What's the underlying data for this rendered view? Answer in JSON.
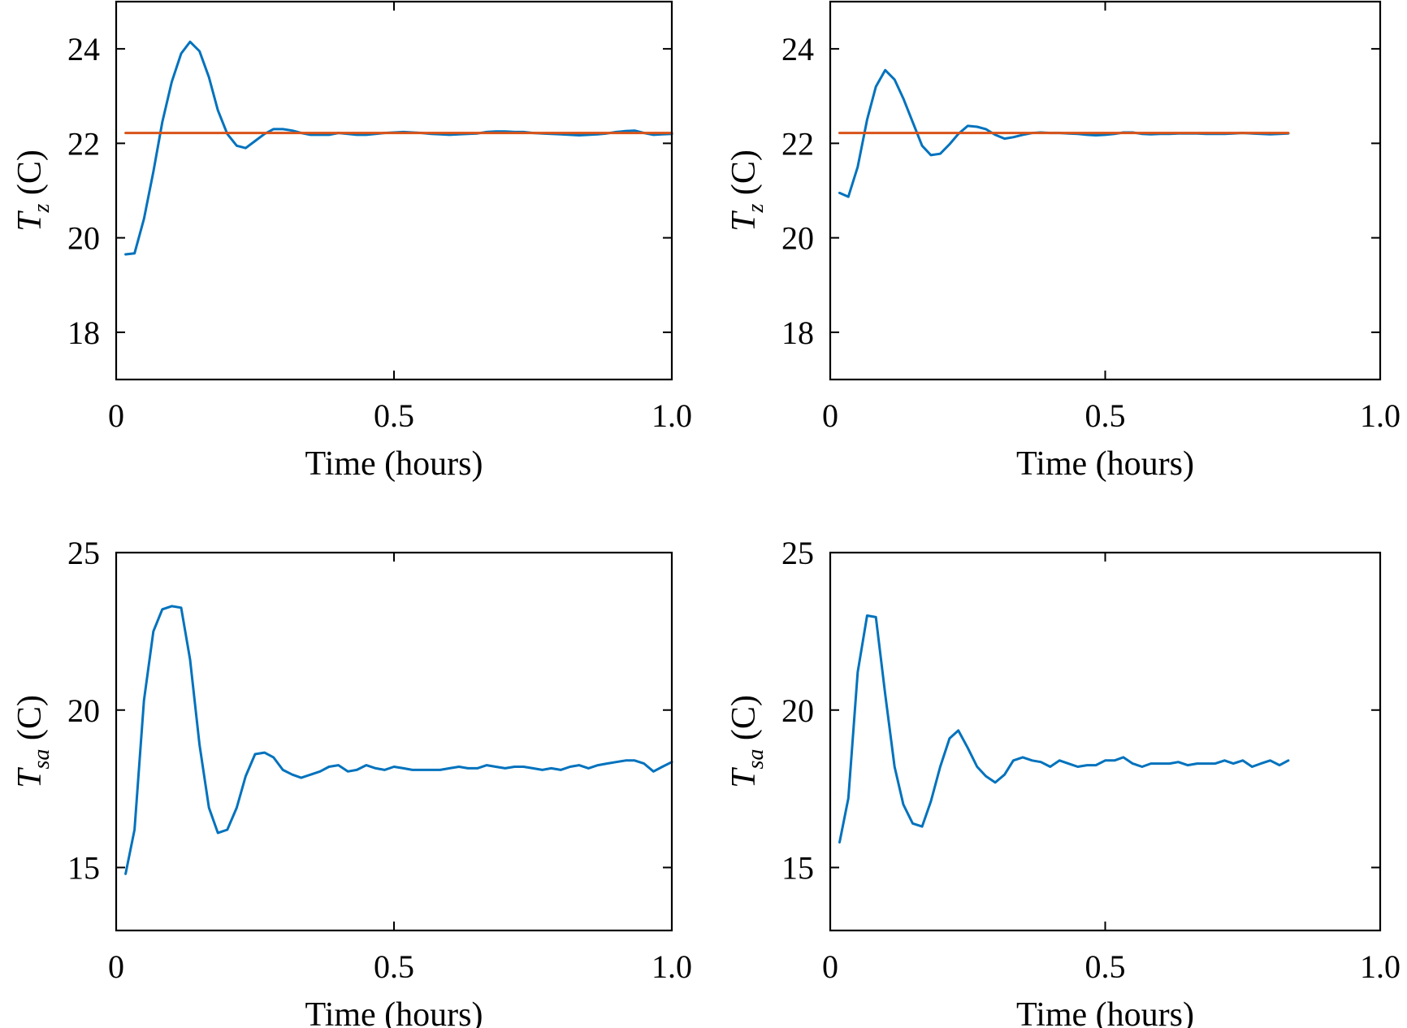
{
  "figure": {
    "chart_data": [
      {
        "type": "line",
        "xlabel": "Time (hours)",
        "ylabel_symbol": "T",
        "ylabel_sub": "z",
        "ylabel_unit": " (C)",
        "xlim": [
          0,
          1.0
        ],
        "ylim": [
          17,
          25
        ],
        "xticks": [
          0,
          0.5,
          1.0
        ],
        "xtick_labels": [
          "0",
          "0.5",
          "1.0"
        ],
        "yticks": [
          18,
          20,
          22,
          24
        ],
        "ytick_labels": [
          "18",
          "20",
          "22",
          "24"
        ],
        "grid": false,
        "series": [
          {
            "color": "#0072BD",
            "x": [
              0.017,
              0.033,
              0.05,
              0.067,
              0.083,
              0.1,
              0.117,
              0.133,
              0.15,
              0.167,
              0.183,
              0.2,
              0.217,
              0.233,
              0.25,
              0.267,
              0.283,
              0.3,
              0.317,
              0.333,
              0.35,
              0.367,
              0.383,
              0.4,
              0.417,
              0.433,
              0.45,
              0.467,
              0.483,
              0.5,
              0.517,
              0.533,
              0.55,
              0.567,
              0.583,
              0.6,
              0.617,
              0.633,
              0.65,
              0.667,
              0.683,
              0.7,
              0.717,
              0.733,
              0.75,
              0.767,
              0.783,
              0.8,
              0.817,
              0.833,
              0.85,
              0.867,
              0.883,
              0.9,
              0.917,
              0.933,
              0.95,
              0.967,
              0.983,
              1.0
            ],
            "y": [
              19.65,
              19.67,
              20.4,
              21.4,
              22.45,
              23.3,
              23.9,
              24.15,
              23.95,
              23.4,
              22.7,
              22.2,
              21.95,
              21.9,
              22.05,
              22.2,
              22.3,
              22.3,
              22.27,
              22.22,
              22.18,
              22.18,
              22.18,
              22.22,
              22.2,
              22.18,
              22.18,
              22.2,
              22.22,
              22.23,
              22.24,
              22.23,
              22.22,
              22.2,
              22.19,
              22.18,
              22.19,
              22.2,
              22.21,
              22.24,
              22.25,
              22.25,
              22.24,
              22.24,
              22.22,
              22.21,
              22.2,
              22.19,
              22.18,
              22.17,
              22.18,
              22.19,
              22.21,
              22.24,
              22.26,
              22.27,
              22.22,
              22.18,
              22.19,
              22.2
            ]
          },
          {
            "color": "#D95319",
            "x": [
              0.017,
              1.0
            ],
            "y": [
              22.22,
              22.22
            ]
          }
        ]
      },
      {
        "type": "line",
        "xlabel": "Time (hours)",
        "ylabel_symbol": "T",
        "ylabel_sub": "z",
        "ylabel_unit": " (C)",
        "xlim": [
          0,
          1.0
        ],
        "ylim": [
          17,
          25
        ],
        "xticks": [
          0,
          0.5,
          1.0
        ],
        "xtick_labels": [
          "0",
          "0.5",
          "1.0"
        ],
        "yticks": [
          18,
          20,
          22,
          24
        ],
        "ytick_labels": [
          "18",
          "20",
          "22",
          "24"
        ],
        "grid": false,
        "series": [
          {
            "color": "#0072BD",
            "x": [
              0.017,
              0.033,
              0.05,
              0.067,
              0.083,
              0.1,
              0.117,
              0.133,
              0.15,
              0.167,
              0.183,
              0.2,
              0.217,
              0.233,
              0.25,
              0.267,
              0.283,
              0.3,
              0.317,
              0.333,
              0.35,
              0.367,
              0.383,
              0.4,
              0.417,
              0.433,
              0.45,
              0.467,
              0.483,
              0.5,
              0.517,
              0.533,
              0.55,
              0.567,
              0.583,
              0.6,
              0.617,
              0.633,
              0.65,
              0.667,
              0.683,
              0.7,
              0.717,
              0.733,
              0.75,
              0.767,
              0.783,
              0.8,
              0.817,
              0.833
            ],
            "y": [
              20.95,
              20.87,
              21.5,
              22.5,
              23.2,
              23.55,
              23.35,
              22.95,
              22.45,
              21.95,
              21.75,
              21.78,
              21.98,
              22.2,
              22.37,
              22.35,
              22.3,
              22.18,
              22.1,
              22.13,
              22.18,
              22.22,
              22.23,
              22.22,
              22.22,
              22.21,
              22.2,
              22.18,
              22.17,
              22.18,
              22.2,
              22.23,
              22.23,
              22.2,
              22.19,
              22.2,
              22.2,
              22.21,
              22.21,
              22.21,
              22.2,
              22.2,
              22.2,
              22.21,
              22.22,
              22.21,
              22.2,
              22.19,
              22.2,
              22.21
            ]
          },
          {
            "color": "#D95319",
            "x": [
              0.017,
              0.833
            ],
            "y": [
              22.22,
              22.22
            ]
          }
        ]
      },
      {
        "type": "line",
        "xlabel": "Time (hours)",
        "ylabel_symbol": "T",
        "ylabel_sub": "sa",
        "ylabel_unit": " (C)",
        "xlim": [
          0,
          1.0
        ],
        "ylim": [
          13,
          25
        ],
        "xticks": [
          0,
          0.5,
          1.0
        ],
        "xtick_labels": [
          "0",
          "0.5",
          "1.0"
        ],
        "yticks": [
          15,
          20,
          25
        ],
        "ytick_labels": [
          "15",
          "20",
          "25"
        ],
        "grid": false,
        "series": [
          {
            "color": "#0072BD",
            "x": [
              0.017,
              0.033,
              0.05,
              0.067,
              0.083,
              0.1,
              0.117,
              0.133,
              0.15,
              0.167,
              0.183,
              0.2,
              0.217,
              0.233,
              0.25,
              0.267,
              0.283,
              0.3,
              0.317,
              0.333,
              0.35,
              0.367,
              0.383,
              0.4,
              0.417,
              0.433,
              0.45,
              0.467,
              0.483,
              0.5,
              0.517,
              0.533,
              0.55,
              0.567,
              0.583,
              0.6,
              0.617,
              0.633,
              0.65,
              0.667,
              0.683,
              0.7,
              0.717,
              0.733,
              0.75,
              0.767,
              0.783,
              0.8,
              0.817,
              0.833,
              0.85,
              0.867,
              0.883,
              0.9,
              0.917,
              0.933,
              0.95,
              0.967,
              0.983,
              1.0
            ],
            "y": [
              14.8,
              16.2,
              20.3,
              22.5,
              23.2,
              23.3,
              23.25,
              21.6,
              18.9,
              16.9,
              16.1,
              16.2,
              16.9,
              17.9,
              18.6,
              18.65,
              18.5,
              18.1,
              17.95,
              17.85,
              17.95,
              18.05,
              18.2,
              18.25,
              18.05,
              18.1,
              18.25,
              18.15,
              18.1,
              18.2,
              18.15,
              18.1,
              18.1,
              18.1,
              18.1,
              18.15,
              18.2,
              18.15,
              18.15,
              18.25,
              18.2,
              18.15,
              18.2,
              18.2,
              18.15,
              18.1,
              18.15,
              18.1,
              18.2,
              18.25,
              18.15,
              18.25,
              18.3,
              18.35,
              18.4,
              18.4,
              18.3,
              18.05,
              18.2,
              18.35
            ]
          }
        ]
      },
      {
        "type": "line",
        "xlabel": "Time (hours)",
        "ylabel_symbol": "T",
        "ylabel_sub": "sa",
        "ylabel_unit": " (C)",
        "xlim": [
          0,
          1.0
        ],
        "ylim": [
          13,
          25
        ],
        "xticks": [
          0,
          0.5,
          1.0
        ],
        "xtick_labels": [
          "0",
          "0.5",
          "1.0"
        ],
        "yticks": [
          15,
          20,
          25
        ],
        "ytick_labels": [
          "15",
          "20",
          "25"
        ],
        "grid": false,
        "series": [
          {
            "color": "#0072BD",
            "x": [
              0.017,
              0.033,
              0.05,
              0.067,
              0.083,
              0.1,
              0.117,
              0.133,
              0.15,
              0.167,
              0.183,
              0.2,
              0.217,
              0.233,
              0.25,
              0.267,
              0.283,
              0.3,
              0.317,
              0.333,
              0.35,
              0.367,
              0.383,
              0.4,
              0.417,
              0.433,
              0.45,
              0.467,
              0.483,
              0.5,
              0.517,
              0.533,
              0.55,
              0.567,
              0.583,
              0.6,
              0.617,
              0.633,
              0.65,
              0.667,
              0.683,
              0.7,
              0.717,
              0.733,
              0.75,
              0.767,
              0.783,
              0.8,
              0.817,
              0.833
            ],
            "y": [
              15.8,
              17.2,
              21.2,
              23.0,
              22.95,
              20.5,
              18.2,
              17.0,
              16.4,
              16.3,
              17.1,
              18.2,
              19.1,
              19.35,
              18.8,
              18.2,
              17.9,
              17.7,
              17.95,
              18.4,
              18.5,
              18.4,
              18.35,
              18.2,
              18.4,
              18.3,
              18.2,
              18.25,
              18.25,
              18.4,
              18.4,
              18.5,
              18.3,
              18.2,
              18.3,
              18.3,
              18.3,
              18.35,
              18.25,
              18.3,
              18.3,
              18.3,
              18.4,
              18.3,
              18.4,
              18.2,
              18.3,
              18.4,
              18.25,
              18.4
            ]
          }
        ]
      }
    ]
  }
}
